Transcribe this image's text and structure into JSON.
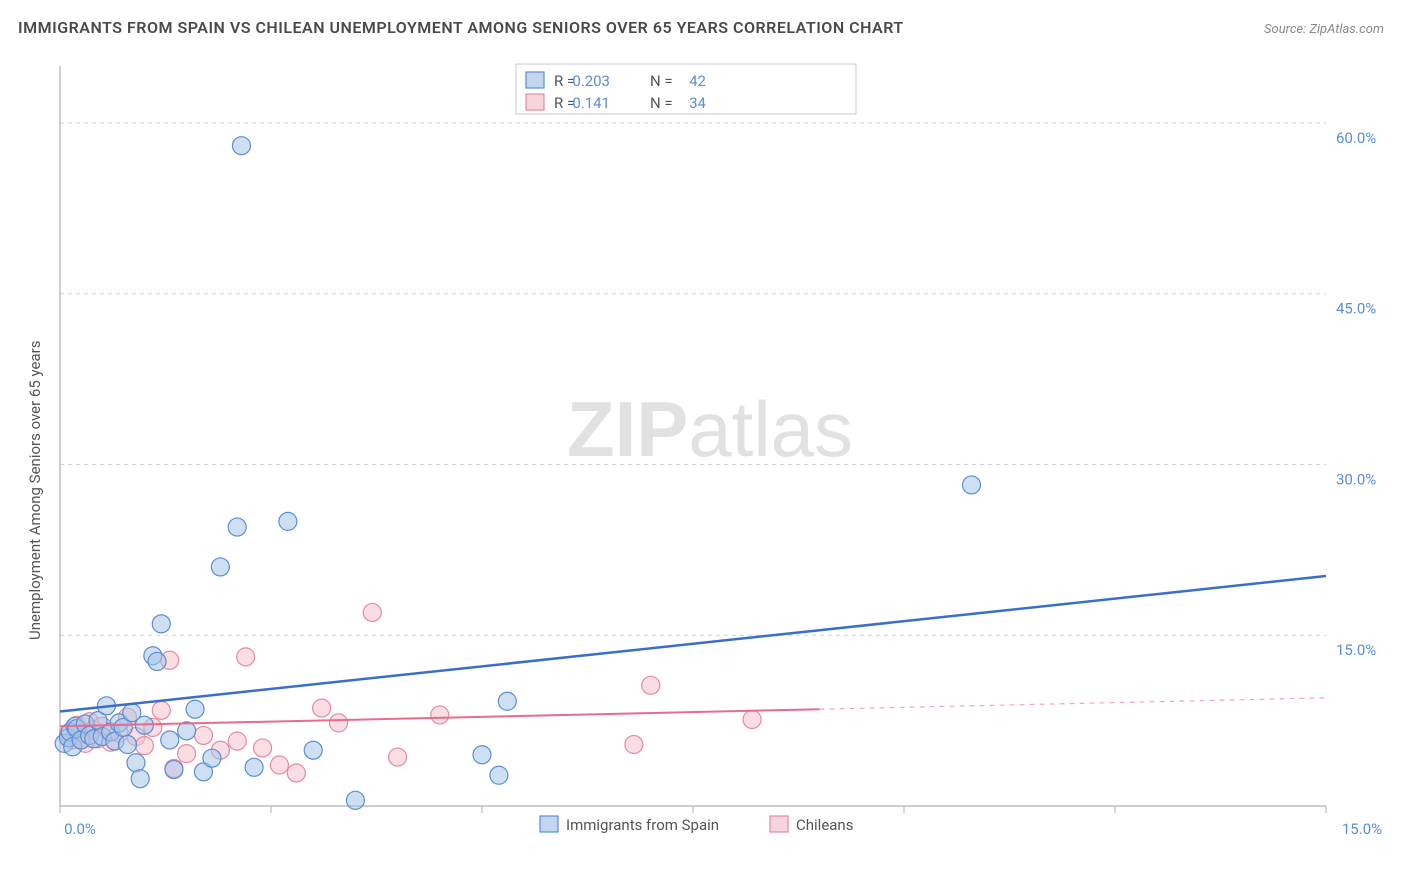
{
  "title": "IMMIGRANTS FROM SPAIN VS CHILEAN UNEMPLOYMENT AMONG SENIORS OVER 65 YEARS CORRELATION CHART",
  "source": "Source: ZipAtlas.com",
  "y_axis_label": "Unemployment Among Seniors over 65 years",
  "watermark": {
    "part1": "ZIP",
    "part2": "atlas"
  },
  "chart": {
    "type": "scatter",
    "background_color": "#ffffff",
    "grid_color": "#d0d0d0",
    "axis_color": "#b0b0b0",
    "tick_label_color": "#5b8dd6",
    "xlim": [
      0,
      15
    ],
    "ylim": [
      0,
      65
    ],
    "x_ticks": [
      0,
      2.5,
      5,
      7.5,
      10,
      12.5,
      15
    ],
    "x_tick_labels": [
      "0.0%",
      "",
      "",
      "",
      "",
      "",
      "15.0%"
    ],
    "y_ticks": [
      15,
      30,
      45,
      60
    ],
    "y_tick_labels": [
      "15.0%",
      "30.0%",
      "45.0%",
      "60.0%"
    ],
    "marker_radius": 9,
    "label_fontsize": 15,
    "title_fontsize": 16
  },
  "series": {
    "blue": {
      "label": "Immigrants from Spain",
      "color_fill": "#a8c5e8",
      "color_stroke": "#5b8dd6",
      "trend_color": "#3a6fc7",
      "R": "0.203",
      "N": "42",
      "trend": {
        "x1": 0,
        "y1": 8.3,
        "x2": 15,
        "y2": 20.2
      },
      "points": [
        [
          0.05,
          5.5
        ],
        [
          0.1,
          6.0
        ],
        [
          0.12,
          6.5
        ],
        [
          0.15,
          5.2
        ],
        [
          0.18,
          7.0
        ],
        [
          0.2,
          6.8
        ],
        [
          0.25,
          5.8
        ],
        [
          0.3,
          7.2
        ],
        [
          0.35,
          6.2
        ],
        [
          0.4,
          5.9
        ],
        [
          0.45,
          7.5
        ],
        [
          0.5,
          6.1
        ],
        [
          0.55,
          8.8
        ],
        [
          0.6,
          6.5
        ],
        [
          0.65,
          5.7
        ],
        [
          0.7,
          7.3
        ],
        [
          0.75,
          6.9
        ],
        [
          0.8,
          5.4
        ],
        [
          0.85,
          8.2
        ],
        [
          0.9,
          3.8
        ],
        [
          0.95,
          2.4
        ],
        [
          1.0,
          7.1
        ],
        [
          1.1,
          13.2
        ],
        [
          1.15,
          12.7
        ],
        [
          1.2,
          16.0
        ],
        [
          1.3,
          5.8
        ],
        [
          1.35,
          3.2
        ],
        [
          1.5,
          6.6
        ],
        [
          1.6,
          8.5
        ],
        [
          1.7,
          3.0
        ],
        [
          1.8,
          4.2
        ],
        [
          1.9,
          21.0
        ],
        [
          2.1,
          24.5
        ],
        [
          2.15,
          58.0
        ],
        [
          2.3,
          3.4
        ],
        [
          2.7,
          25.0
        ],
        [
          3.0,
          4.9
        ],
        [
          3.5,
          0.5
        ],
        [
          5.0,
          4.5
        ],
        [
          5.2,
          2.7
        ],
        [
          5.3,
          9.2
        ],
        [
          10.8,
          28.2
        ]
      ]
    },
    "pink": {
      "label": "Chileans",
      "color_fill": "#f5c2cd",
      "color_stroke": "#e48ba0",
      "trend_color": "#e96c8c",
      "R": "0.141",
      "N": "34",
      "trend_solid": {
        "x1": 0,
        "y1": 7.0,
        "x2": 9.0,
        "y2": 8.5
      },
      "trend_dash": {
        "x1": 9.0,
        "y1": 8.5,
        "x2": 15,
        "y2": 9.5
      },
      "points": [
        [
          0.1,
          6.3
        ],
        [
          0.15,
          5.8
        ],
        [
          0.2,
          7.1
        ],
        [
          0.25,
          6.0
        ],
        [
          0.3,
          5.5
        ],
        [
          0.35,
          7.4
        ],
        [
          0.4,
          6.7
        ],
        [
          0.45,
          5.9
        ],
        [
          0.5,
          7.0
        ],
        [
          0.6,
          5.6
        ],
        [
          0.7,
          6.4
        ],
        [
          0.8,
          7.8
        ],
        [
          0.9,
          6.1
        ],
        [
          1.0,
          5.3
        ],
        [
          1.1,
          6.9
        ],
        [
          1.2,
          8.4
        ],
        [
          1.3,
          12.8
        ],
        [
          1.35,
          3.3
        ],
        [
          1.5,
          4.6
        ],
        [
          1.7,
          6.2
        ],
        [
          1.9,
          4.9
        ],
        [
          2.1,
          5.7
        ],
        [
          2.2,
          13.1
        ],
        [
          2.4,
          5.1
        ],
        [
          2.6,
          3.6
        ],
        [
          2.8,
          2.9
        ],
        [
          3.1,
          8.6
        ],
        [
          3.3,
          7.3
        ],
        [
          3.7,
          17.0
        ],
        [
          4.0,
          4.3
        ],
        [
          4.5,
          8.0
        ],
        [
          6.8,
          5.4
        ],
        [
          7.0,
          10.6
        ],
        [
          8.2,
          7.6
        ]
      ]
    }
  },
  "stats_legend": {
    "r_label": "R =",
    "n_label": "N ="
  },
  "bottom_legend": {
    "items": [
      {
        "key": "blue",
        "label": "Immigrants from Spain"
      },
      {
        "key": "pink",
        "label": "Chileans"
      }
    ]
  }
}
